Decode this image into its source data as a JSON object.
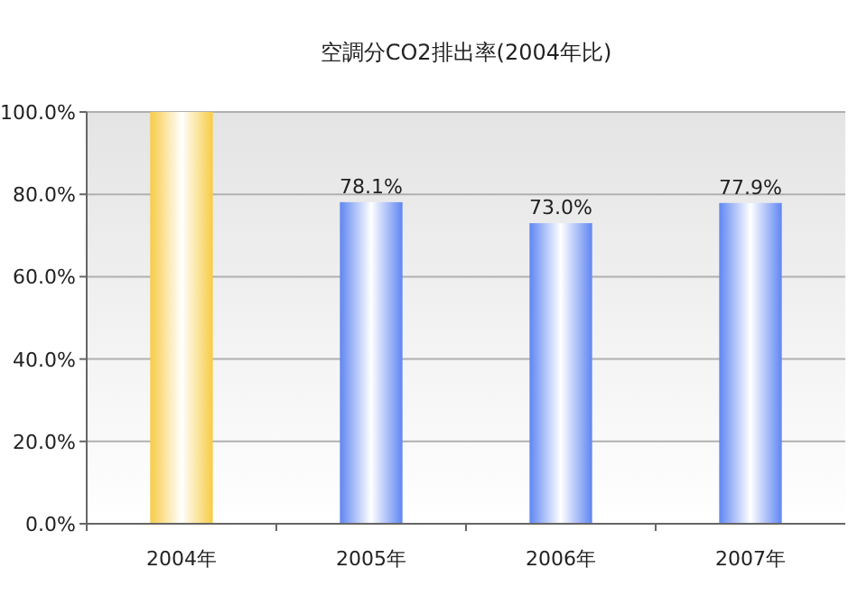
{
  "chart_data": {
    "type": "bar",
    "title": "空調分CO2排出率(2004年比)",
    "categories": [
      "2004年",
      "2005年",
      "2006年",
      "2007年"
    ],
    "values": [
      100,
      78.1,
      73.0,
      77.9
    ],
    "colors": [
      "#f7cc45",
      "#5f86f2",
      "#5f86f2",
      "#5f86f2"
    ],
    "value_labels": [
      null,
      "78.1%",
      "73.0%",
      "77.9%"
    ],
    "ylim": [
      0,
      100
    ],
    "yticks": [
      {
        "value": 0,
        "label": "0.0%"
      },
      {
        "value": 20,
        "label": "20.0%"
      },
      {
        "value": 40,
        "label": "40.0%"
      },
      {
        "value": 60,
        "label": "60.0%"
      },
      {
        "value": 80,
        "label": "80.0%"
      },
      {
        "value": 100,
        "label": "100.0%"
      }
    ],
    "grid": "y"
  }
}
